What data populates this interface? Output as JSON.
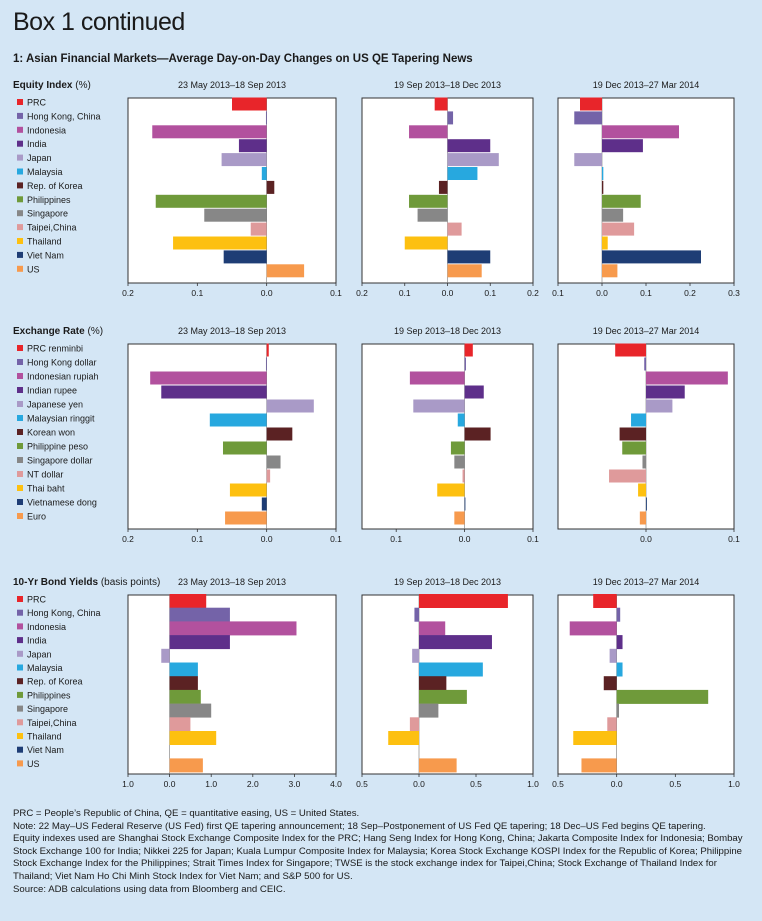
{
  "page_heading": "Box 1 continued",
  "figure_title": "1: Asian Financial Markets—Average Day-on-Day Changes on US QE Tapering News",
  "colors": {
    "background": "#d4e6f5",
    "panel": "#ffffff",
    "palette": [
      "#e8252a",
      "#7463a8",
      "#b2519e",
      "#5e2f8a",
      "#a99ac7",
      "#27a8df",
      "#5b2223",
      "#6f9a3a",
      "#878787",
      "#df9a9b",
      "#fdc010",
      "#1e3d75",
      "#f79a4d",
      "#2e8f61"
    ]
  },
  "chart_data": [
    {
      "type": "bar",
      "orientation": "horizontal",
      "title": "Equity Index",
      "unit": "(%)",
      "categories": [
        "PRC",
        "Hong Kong, China",
        "Indonesia",
        "India",
        "Japan",
        "Malaysia",
        "Rep. of Korea",
        "Philippines",
        "Singapore",
        "Taipei,China",
        "Thailand",
        "Viet Nam",
        "US"
      ],
      "series": [
        {
          "name": "23 May 2013–18 Sep 2013",
          "values": [
            -0.05,
            -0.001,
            -0.165,
            -0.04,
            -0.065,
            -0.007,
            0.011,
            -0.16,
            -0.09,
            -0.023,
            -0.135,
            -0.062,
            0.054
          ],
          "xlim": [
            -0.2,
            0.1
          ],
          "ticks": [
            "0.2",
            "0.1",
            "0.0",
            "0.1"
          ]
        },
        {
          "name": "19 Sep 2013–18 Dec 2013",
          "values": [
            -0.03,
            0.013,
            -0.09,
            0.1,
            0.12,
            0.07,
            -0.02,
            -0.09,
            -0.07,
            0.033,
            -0.1,
            0.1,
            0.08
          ],
          "xlim": [
            -0.2,
            0.2
          ],
          "ticks": [
            "0.2",
            "0.1",
            "0.0",
            "0.1",
            "0.2"
          ]
        },
        {
          "name": "19 Dec 2013–27 Mar 2014",
          "values": [
            -0.05,
            -0.063,
            0.175,
            0.093,
            -0.063,
            0.003,
            0.003,
            0.088,
            0.048,
            0.073,
            0.013,
            0.225,
            0.035
          ],
          "xlim": [
            -0.1,
            0.3
          ],
          "ticks": [
            "0.1",
            "0.0",
            "0.1",
            "0.2",
            "0.3"
          ]
        }
      ]
    },
    {
      "type": "bar",
      "orientation": "horizontal",
      "title": "Exchange Rate",
      "unit": "(%)",
      "categories": [
        "PRC renminbi",
        "Hong Kong dollar",
        "Indonesian rupiah",
        "Indian rupee",
        "Japanese yen",
        "Malaysian ringgit",
        "Korean won",
        "Philippine peso",
        "Singapore dollar",
        "NT dollar",
        "Thai baht",
        "Vietnamese dong",
        "Euro"
      ],
      "series": [
        {
          "name": "23 May 2013–18 Sep 2013",
          "values": [
            0.003,
            -0.001,
            -0.168,
            -0.152,
            0.068,
            -0.082,
            0.037,
            -0.063,
            0.02,
            0.005,
            -0.053,
            -0.007,
            -0.06
          ],
          "xlim": [
            -0.2,
            0.1
          ],
          "ticks": [
            "0.2",
            "0.1",
            "0.0",
            "0.1"
          ]
        },
        {
          "name": "19 Sep 2013–18 Dec 2013",
          "values": [
            0.012,
            0.002,
            -0.08,
            0.028,
            -0.075,
            -0.01,
            0.038,
            -0.02,
            -0.015,
            -0.003,
            -0.04,
            0.001,
            -0.015
          ],
          "xlim": [
            -0.15,
            0.1
          ],
          "ticks": [
            "0.1",
            "0.0",
            "0.1"
          ]
        },
        {
          "name": "19 Dec 2013–27 Mar 2014",
          "values": [
            -0.035,
            -0.002,
            0.093,
            0.044,
            0.03,
            -0.017,
            -0.03,
            -0.027,
            -0.004,
            -0.042,
            -0.009,
            0.001,
            -0.007
          ],
          "xlim": [
            -0.1,
            0.1
          ],
          "ticks": [
            "0.0",
            "0.1"
          ]
        }
      ]
    },
    {
      "type": "bar",
      "orientation": "horizontal",
      "title": "10-Yr Bond Yields",
      "unit": "(basis points)",
      "categories": [
        "PRC",
        "Hong Kong, China",
        "Indonesia",
        "India",
        "Japan",
        "Malaysia",
        "Rep. of Korea",
        "Philippines",
        "Singapore",
        "Taipei,China",
        "Thailand",
        "Viet Nam",
        "US"
      ],
      "series": [
        {
          "name": "23 May 2013–18 Sep 2013",
          "values": [
            0.88,
            1.45,
            3.05,
            1.45,
            -0.2,
            0.68,
            0.68,
            0.75,
            1.0,
            0.5,
            1.12,
            null,
            0.8
          ],
          "xlim": [
            -1.0,
            4.0
          ],
          "ticks": [
            "1.0",
            "0.0",
            "1.0",
            "2.0",
            "3.0",
            "4.0"
          ]
        },
        {
          "name": "19 Sep 2013–18 Dec 2013",
          "values": [
            0.78,
            -0.04,
            0.23,
            0.64,
            -0.06,
            0.56,
            0.24,
            0.42,
            0.17,
            -0.08,
            -0.27,
            null,
            0.33
          ],
          "xlim": [
            -0.5,
            1.0
          ],
          "ticks": [
            "0.5",
            "0.0",
            "0.5",
            "1.0"
          ]
        },
        {
          "name": "19 Dec 2013–27 Mar 2014",
          "values": [
            -0.2,
            0.03,
            -0.4,
            0.05,
            -0.06,
            0.05,
            -0.11,
            0.78,
            0.02,
            -0.08,
            -0.37,
            null,
            -0.3
          ],
          "xlim": [
            -0.5,
            1.0
          ],
          "ticks": [
            "0.5",
            "0.0",
            "0.5",
            "1.0"
          ]
        }
      ]
    }
  ],
  "footnotes": [
    "PRC = People’s Republic of China, QE = quantitative easing, US = United States.",
    "Note: 22 May–US Federal Reserve (US Fed) first QE tapering announcement; 18 Sep–Postponement of US Fed QE tapering; 18 Dec–US Fed begins QE tapering.",
    "Equity indexes used are Shanghai Stock Exchange Composite Index for the PRC; Hang Seng Index for Hong Kong, China; Jakarta Composite Index for Indonesia; Bombay Stock Exchange 100 for India; Nikkei 225 for Japan; Kuala Lumpur Composite Index for Malaysia; Korea Stock Exchange KOSPI Index for the Republic of Korea; Philippine Stock Exchange Index for the Philippines; Strait Times Index for Singapore; TWSE is the stock exchange index for Taipei,China; Stock Exchange of Thailand Index for Thailand; Viet Nam Ho Chi Minh Stock Index for Viet Nam; and S&P 500 for US.",
    "Source: ADB calculations using data from Bloomberg and CEIC."
  ]
}
